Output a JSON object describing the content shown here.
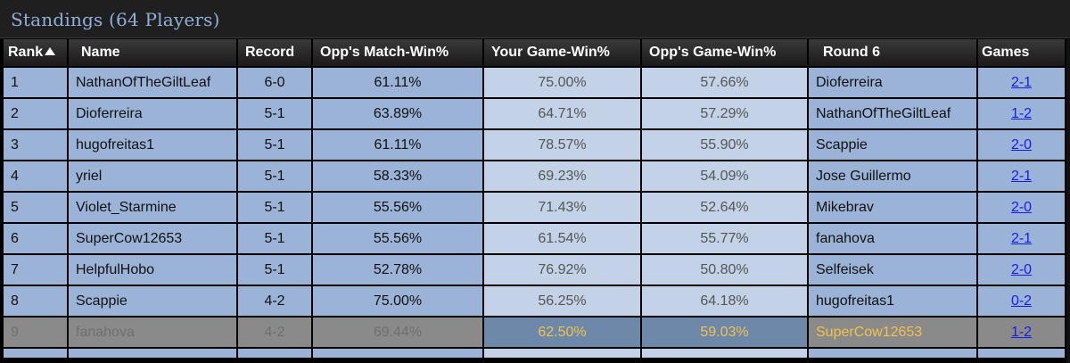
{
  "header": {
    "title": "Standings (64 Players)"
  },
  "columns": {
    "rank": "Rank",
    "name": "Name",
    "record": "Record",
    "opp_match_win": "Opp's Match-Win%",
    "your_game_win": "Your Game-Win%",
    "opp_game_win": "Opp's Game-Win%",
    "round": "Round 6",
    "games": "Games"
  },
  "icons": {
    "sort": "sort-ascending-icon"
  },
  "colors": {
    "row_blue": "#9bb3d6",
    "row_light": "#c3d2e6",
    "highlight_row": "#8a8a8a",
    "highlight_text": "#f2c24a",
    "link": "#1a1aee"
  },
  "rows": [
    {
      "rank": "1",
      "name": "NathanOfTheGiltLeaf",
      "record": "6-0",
      "omw": "61.11%",
      "gw": "75.00%",
      "ogw": "57.66%",
      "opponent": "Dioferreira",
      "games": "2-1"
    },
    {
      "rank": "2",
      "name": "Dioferreira",
      "record": "5-1",
      "omw": "63.89%",
      "gw": "64.71%",
      "ogw": "57.29%",
      "opponent": "NathanOfTheGiltLeaf",
      "games": "1-2"
    },
    {
      "rank": "3",
      "name": "hugofreitas1",
      "record": "5-1",
      "omw": "61.11%",
      "gw": "78.57%",
      "ogw": "55.90%",
      "opponent": "Scappie",
      "games": "2-0"
    },
    {
      "rank": "4",
      "name": "yriel",
      "record": "5-1",
      "omw": "58.33%",
      "gw": "69.23%",
      "ogw": "54.09%",
      "opponent": "Jose Guillermo",
      "games": "2-1"
    },
    {
      "rank": "5",
      "name": "Violet_Starmine",
      "record": "5-1",
      "omw": "55.56%",
      "gw": "71.43%",
      "ogw": "52.64%",
      "opponent": "Mikebrav",
      "games": "2-0"
    },
    {
      "rank": "6",
      "name": "SuperCow12653",
      "record": "5-1",
      "omw": "55.56%",
      "gw": "61.54%",
      "ogw": "55.77%",
      "opponent": "fanahova",
      "games": "2-1"
    },
    {
      "rank": "7",
      "name": "HelpfulHobo",
      "record": "5-1",
      "omw": "52.78%",
      "gw": "76.92%",
      "ogw": "50.80%",
      "opponent": "Selfeisek",
      "games": "2-0"
    },
    {
      "rank": "8",
      "name": "Scappie",
      "record": "4-2",
      "omw": "75.00%",
      "gw": "56.25%",
      "ogw": "64.18%",
      "opponent": "hugofreitas1",
      "games": "0-2"
    },
    {
      "rank": "9",
      "name": "fanahova",
      "record": "4-2",
      "omw": "69.44%",
      "gw": "62.50%",
      "ogw": "59.03%",
      "opponent": "SuperCow12653",
      "games": "1-2"
    }
  ]
}
